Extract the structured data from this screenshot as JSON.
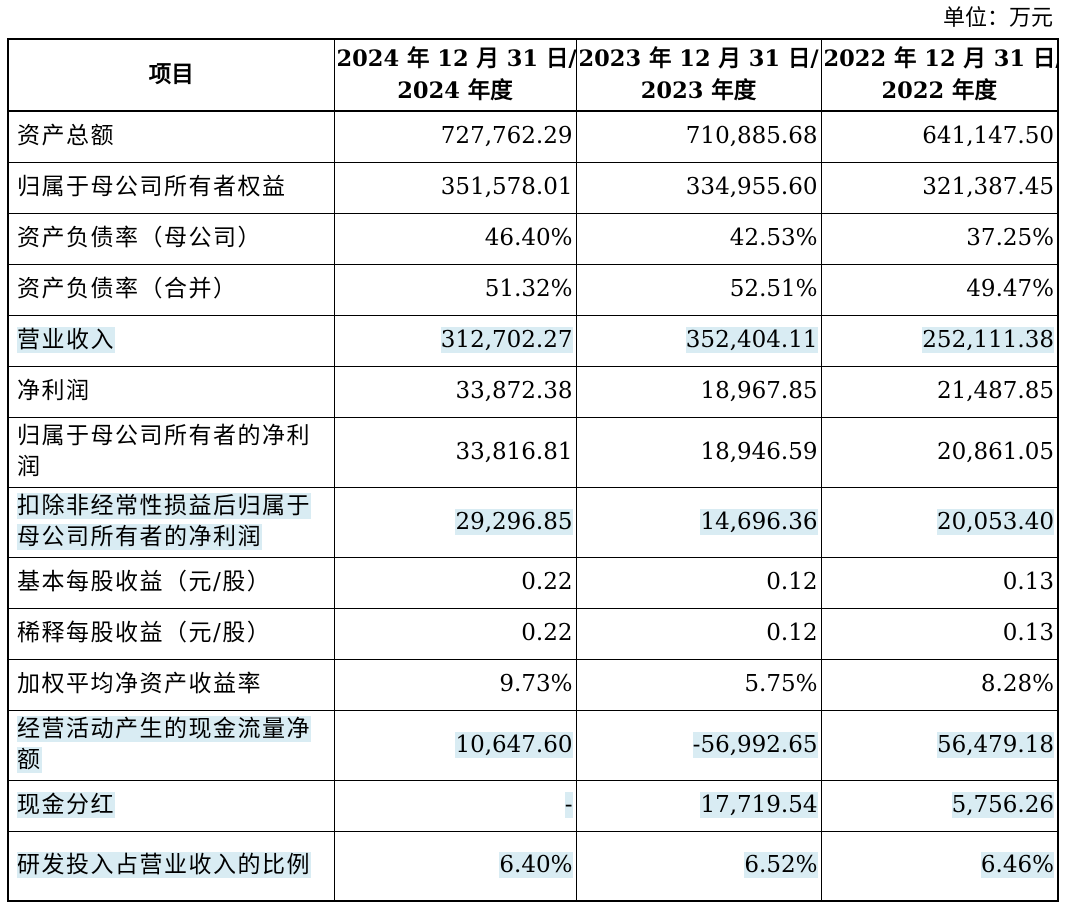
{
  "unit_label": "单位：万元",
  "header": {
    "item": "项目",
    "col1_line1": "2024 年 12 月 31 日/",
    "col1_line2": "2024 年度",
    "col2_line1": "2023 年 12 月 31 日/",
    "col2_line2": "2023 年度",
    "col3_line1": "2022 年 12 月 31 日/",
    "col3_line2": "2022 年度"
  },
  "rows": [
    {
      "label": "资产总额",
      "v2024": "727,762.29",
      "v2023": "710,885.68",
      "v2022": "641,147.50",
      "highlighted": false
    },
    {
      "label": "归属于母公司所有者权益",
      "v2024": "351,578.01",
      "v2023": "334,955.60",
      "v2022": "321,387.45",
      "highlighted": false
    },
    {
      "label": "资产负债率（母公司）",
      "v2024": "46.40%",
      "v2023": "42.53%",
      "v2022": "37.25%",
      "highlighted": false
    },
    {
      "label": "资产负债率（合并）",
      "v2024": "51.32%",
      "v2023": "52.51%",
      "v2022": "49.47%",
      "highlighted": false
    },
    {
      "label": "营业收入",
      "v2024": "312,702.27",
      "v2023": "352,404.11",
      "v2022": "252,111.38",
      "highlighted": true
    },
    {
      "label": "净利润",
      "v2024": "33,872.38",
      "v2023": "18,967.85",
      "v2022": "21,487.85",
      "highlighted": false
    },
    {
      "label": "归属于母公司所有者的净利润",
      "v2024": "33,816.81",
      "v2023": "18,946.59",
      "v2022": "20,861.05",
      "highlighted": false
    },
    {
      "label": "扣除非经常性损益后归属于母公司所有者的净利润",
      "v2024": "29,296.85",
      "v2023": "14,696.36",
      "v2022": "20,053.40",
      "highlighted": true
    },
    {
      "label": "基本每股收益（元/股）",
      "v2024": "0.22",
      "v2023": "0.12",
      "v2022": "0.13",
      "highlighted": false
    },
    {
      "label": "稀释每股收益（元/股）",
      "v2024": "0.22",
      "v2023": "0.12",
      "v2022": "0.13",
      "highlighted": false
    },
    {
      "label": "加权平均净资产收益率",
      "v2024": "9.73%",
      "v2023": "5.75%",
      "v2022": "8.28%",
      "highlighted": false
    },
    {
      "label": "经营活动产生的现金流量净额",
      "v2024": "10,647.60",
      "v2023": "-56,992.65",
      "v2022": "56,479.18",
      "highlighted": true
    },
    {
      "label": "现金分红",
      "v2024": "-",
      "v2023": "17,719.54",
      "v2022": "5,756.26",
      "highlighted": true
    },
    {
      "label": "研发投入占营业收入的比例",
      "v2024": "6.40%",
      "v2023": "6.52%",
      "v2022": "6.46%",
      "highlighted": true
    }
  ],
  "highlight_color": "#d9ecf3"
}
